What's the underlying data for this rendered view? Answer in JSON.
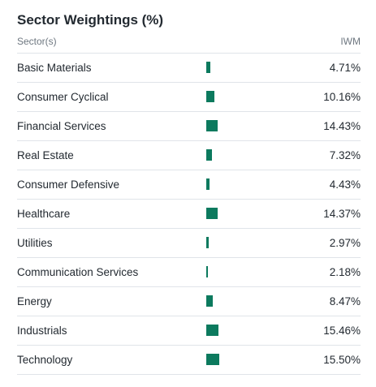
{
  "title": "Sector Weightings (%)",
  "columns": {
    "sector": "Sector(s)",
    "fund": "IWM"
  },
  "colors": {
    "bar": "#0c7a5e",
    "text": "#232a31",
    "muted": "#6e7780",
    "rule": "#e0e4e9"
  },
  "sectors": [
    {
      "name": "Basic Materials",
      "value": 4.71,
      "label": "4.71%"
    },
    {
      "name": "Consumer Cyclical",
      "value": 10.16,
      "label": "10.16%"
    },
    {
      "name": "Financial Services",
      "value": 14.43,
      "label": "14.43%"
    },
    {
      "name": "Real Estate",
      "value": 7.32,
      "label": "7.32%"
    },
    {
      "name": "Consumer Defensive",
      "value": 4.43,
      "label": "4.43%"
    },
    {
      "name": "Healthcare",
      "value": 14.37,
      "label": "14.37%"
    },
    {
      "name": "Utilities",
      "value": 2.97,
      "label": "2.97%"
    },
    {
      "name": "Communication Services",
      "value": 2.18,
      "label": "2.18%"
    },
    {
      "name": "Energy",
      "value": 8.47,
      "label": "8.47%"
    },
    {
      "name": "Industrials",
      "value": 15.46,
      "label": "15.46%"
    },
    {
      "name": "Technology",
      "value": 15.5,
      "label": "15.50%"
    }
  ]
}
